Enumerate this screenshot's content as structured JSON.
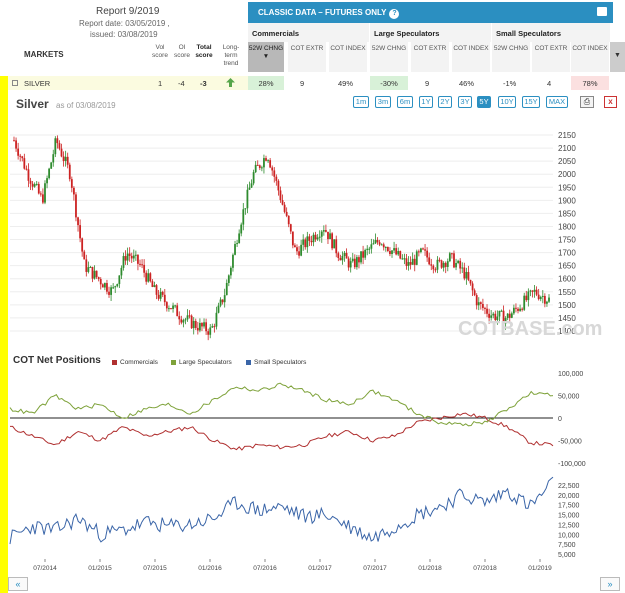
{
  "header": {
    "report_title": "Report 9/2019",
    "report_date": "Report date: 03/05/2019 ,",
    "issued": "issued: 03/08/2019",
    "markets_label": "MARKETS",
    "vol_score": "Vol score",
    "oi_score": "OI score",
    "total_score": "Total score",
    "long_term_trend": "Long-term trend",
    "classic_title": "CLASSIC DATA – FUTURES ONLY",
    "help": "?"
  },
  "groups": [
    "Commercials",
    "Large Speculators",
    "Small Speculators"
  ],
  "subcols": [
    "52W CHNG",
    "COT EXTR",
    "COT INDEX"
  ],
  "sort_glyph": "▼",
  "sel_arrow": "▼",
  "row": {
    "market": "SILVER",
    "vol": "1",
    "oi": "-4",
    "total": "-3",
    "trend": "up",
    "comm_chng": "28%",
    "comm_extr": "9",
    "comm_index": "49%",
    "large_chng": "-30%",
    "large_extr": "9",
    "large_index": "46%",
    "small_chng": "-1%",
    "small_extr": "4",
    "small_index": "78%"
  },
  "chart_header": {
    "title": "Silver",
    "as_of": "as of 03/08/2019",
    "timeframes": [
      "1m",
      "3m",
      "6m",
      "1Y",
      "2Y",
      "3Y",
      "5Y",
      "10Y",
      "15Y",
      "MAX"
    ],
    "active_timeframe": "5Y",
    "print": "⎙",
    "close": "x"
  },
  "cot": {
    "title": "COT Net Positions",
    "legend": [
      "Commercials",
      "Large Speculators",
      "Small Speculators"
    ]
  },
  "nav": {
    "prev": "«",
    "next": "»"
  },
  "watermark": "COTBASE.com",
  "colors": {
    "accent": "#2b8fc1",
    "up": "#2e8b2e",
    "down": "#cc2222",
    "commercials": "#b03030",
    "large": "#7ea23a",
    "small": "#3a65a8",
    "highlight": "#ffff00"
  },
  "chart_data": [
    {
      "type": "candlestick",
      "title": "Silver",
      "ylim": [
        1350,
        2200
      ],
      "yticks": [
        1400,
        1450,
        1500,
        1550,
        1600,
        1650,
        1700,
        1750,
        1800,
        1850,
        1900,
        1950,
        2000,
        2050,
        2100,
        2150
      ],
      "x_ticks": [
        "07/2014",
        "01/2015",
        "07/2015",
        "01/2016",
        "07/2016",
        "01/2017",
        "07/2017",
        "01/2018",
        "07/2018",
        "01/2019"
      ],
      "series": [
        {
          "name": "Silver",
          "close": [
            2130,
            2000,
            1900,
            2130,
            2000,
            1650,
            1600,
            1550,
            1700,
            1650,
            1550,
            1500,
            1450,
            1420,
            1400,
            1550,
            1800,
            2000,
            2080,
            1900,
            1700,
            1750,
            1800,
            1700,
            1650,
            1700,
            1750,
            1700,
            1650,
            1700,
            1650,
            1680,
            1620,
            1500,
            1460,
            1450,
            1500,
            1550,
            1520
          ]
        }
      ]
    },
    {
      "type": "line",
      "title": "COT Net Positions",
      "ylim": [
        -100000,
        100000
      ],
      "yticks": [
        -100000,
        -50000,
        0,
        50000,
        100000
      ],
      "series": [
        {
          "name": "Commercials",
          "values": [
            -20000,
            -40000,
            -60000,
            -30000,
            -50000,
            -20000,
            -40000,
            -30000,
            -20000,
            -50000,
            -70000,
            -60000,
            -65000,
            -60000,
            -40000,
            -30000,
            -50000,
            -40000,
            -10000,
            0,
            10000,
            0,
            -20000,
            -55000,
            -60000
          ]
        },
        {
          "name": "Large Speculators",
          "values": [
            20000,
            10000,
            50000,
            20000,
            30000,
            0,
            20000,
            30000,
            10000,
            40000,
            70000,
            60000,
            75000,
            60000,
            40000,
            30000,
            60000,
            40000,
            10000,
            -10000,
            -15000,
            -10000,
            20000,
            55000,
            50000
          ]
        }
      ]
    },
    {
      "type": "line",
      "ylim": [
        5000,
        25000
      ],
      "yticks": [
        5000,
        7500,
        10000,
        12500,
        15000,
        17500,
        20000,
        22500
      ],
      "series": [
        {
          "name": "Small Speculators",
          "values": [
            9000,
            12000,
            11000,
            14000,
            10000,
            11000,
            13000,
            12000,
            12500,
            14000,
            18000,
            16000,
            17000,
            14500,
            15000,
            12000,
            9000,
            12000,
            15000,
            17000,
            20000,
            18000,
            21000,
            17000,
            23000
          ]
        }
      ]
    }
  ]
}
